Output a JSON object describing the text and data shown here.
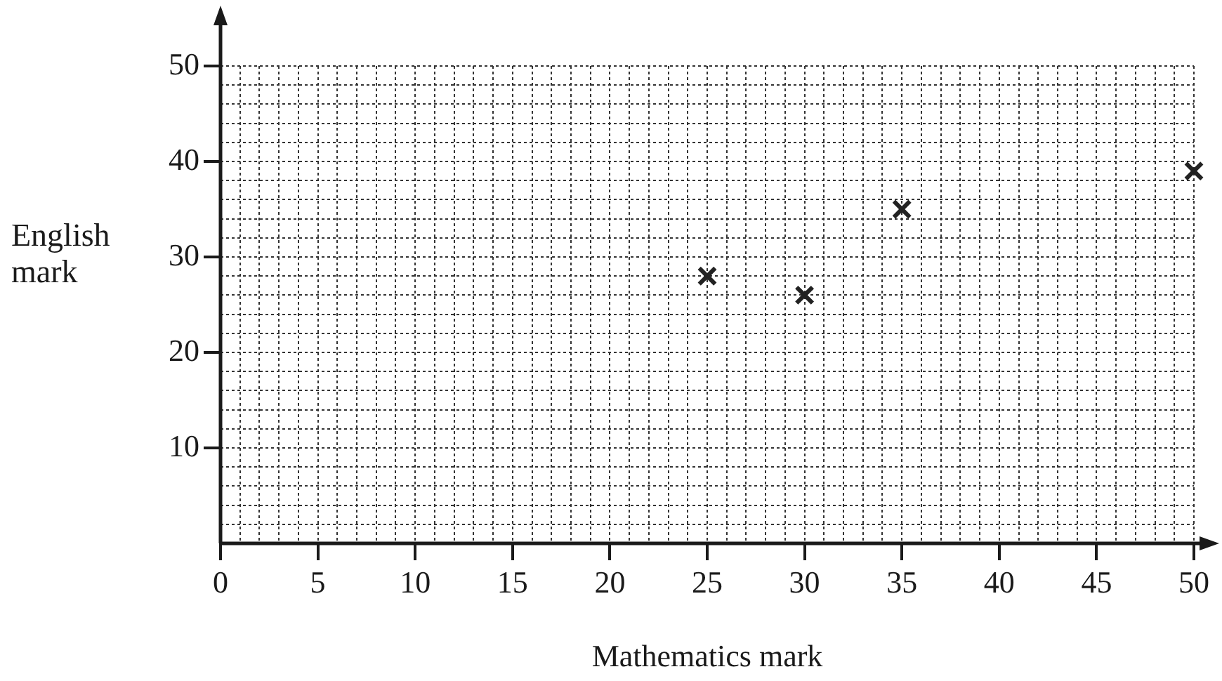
{
  "chart_data": {
    "type": "scatter",
    "xlabel": "Mathematics mark",
    "ylabel": "English mark",
    "x": [
      25,
      30,
      35,
      50
    ],
    "series": [
      {
        "color": "#222222",
        "values": [
          28,
          26,
          35,
          39
        ]
      }
    ],
    "xlim": [
      0,
      50
    ],
    "ylim": [
      0,
      50
    ],
    "xticks": [
      0,
      {
        "value": 1,
        "label": null
      },
      {
        "value": 2,
        "label": null
      },
      {
        "value": 3,
        "label": null
      },
      {
        "value": 4,
        "label": null
      },
      5,
      {
        "value": 6,
        "label": null
      },
      {
        "value": 7,
        "label": null
      },
      {
        "value": 8,
        "label": null
      },
      {
        "value": 9,
        "label": null
      },
      10,
      {
        "value": 11,
        "label": null
      },
      {
        "value": 12,
        "label": null
      },
      {
        "value": 13,
        "label": null
      },
      {
        "value": 14,
        "label": null
      },
      15,
      {
        "value": 16,
        "label": null
      },
      {
        "value": 17,
        "label": null
      },
      {
        "value": 18,
        "label": null
      },
      {
        "value": 19,
        "label": null
      },
      20,
      {
        "value": 21,
        "label": null
      },
      {
        "value": 22,
        "label": null
      },
      {
        "value": 23,
        "label": null
      },
      {
        "value": 24,
        "label": null
      },
      25,
      {
        "value": 26,
        "label": null
      },
      {
        "value": 27,
        "label": null
      },
      {
        "value": 28,
        "label": null
      },
      {
        "value": 29,
        "label": null
      },
      30,
      {
        "value": 31,
        "label": null
      },
      {
        "value": 32,
        "label": null
      },
      {
        "value": 33,
        "label": null
      },
      {
        "value": 34,
        "label": null
      },
      35,
      {
        "value": 36,
        "label": null
      },
      {
        "value": 37,
        "label": null
      },
      {
        "value": 38,
        "label": null
      },
      {
        "value": 39,
        "label": null
      },
      40,
      {
        "value": 41,
        "label": null
      },
      {
        "value": 42,
        "label": null
      },
      {
        "value": 43,
        "label": null
      },
      {
        "value": 44,
        "label": null
      },
      45,
      {
        "value": 46,
        "label": null
      },
      {
        "value": 47,
        "label": null
      },
      {
        "value": 48,
        "label": null
      },
      {
        "value": 49,
        "label": null
      },
      50
    ],
    "yticks": [
      {
        "value": 2,
        "label": null
      },
      {
        "value": 4,
        "label": null
      },
      {
        "value": 6,
        "label": null
      },
      {
        "value": 8,
        "label": null
      },
      10,
      {
        "value": 12,
        "label": null
      },
      {
        "value": 14,
        "label": null
      },
      {
        "value": 16,
        "label": null
      },
      {
        "value": 18,
        "label": null
      },
      20,
      {
        "value": 22,
        "label": null
      },
      {
        "value": 24,
        "label": null
      },
      {
        "value": 26,
        "label": null
      },
      {
        "value": 28,
        "label": null
      },
      30,
      {
        "value": 32,
        "label": null
      },
      {
        "value": 34,
        "label": null
      },
      {
        "value": 36,
        "label": null
      },
      {
        "value": 38,
        "label": null
      },
      40,
      {
        "value": 42,
        "label": null
      },
      {
        "value": 44,
        "label": null
      },
      {
        "value": 46,
        "label": null
      },
      {
        "value": 48,
        "label": null
      },
      50
    ],
    "grid": true,
    "marker": "cross"
  }
}
